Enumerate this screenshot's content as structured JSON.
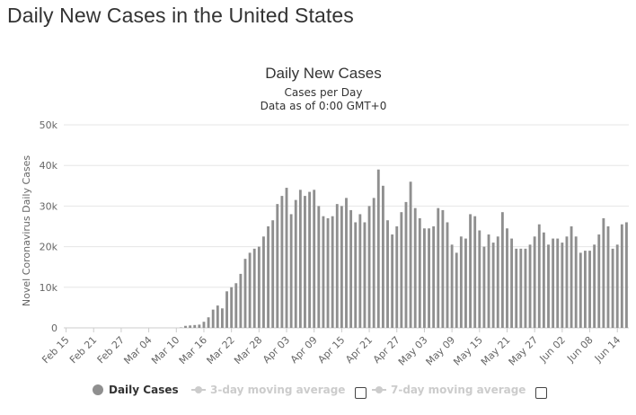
{
  "page": {
    "title": "Daily New Cases in the United States"
  },
  "chart_data": {
    "type": "bar",
    "title": "Daily New Cases",
    "subtitle_line1": "Cases per Day",
    "subtitle_line2": "Data as of 0:00 GMT+0",
    "ylabel": "Novel Coronavirus Daily Cases",
    "xlabel": "",
    "ylim": [
      0,
      50000
    ],
    "y_ticks": [
      "0",
      "10k",
      "20k",
      "30k",
      "40k",
      "50k"
    ],
    "grid": true,
    "legend_position": "bottom",
    "bar_color": "#8f8f8f",
    "x_tick_labels": [
      "Feb 15",
      "Feb 21",
      "Feb 27",
      "Mar 04",
      "Mar 10",
      "Mar 16",
      "Mar 22",
      "Mar 28",
      "Apr 03",
      "Apr 09",
      "Apr 15",
      "Apr 21",
      "Apr 27",
      "May 03",
      "May 09",
      "May 15",
      "May 21",
      "May 27",
      "Jun 02",
      "Jun 08",
      "Jun 14"
    ],
    "series": [
      {
        "name": "Daily Cases",
        "start_date": "Feb 15",
        "values": [
          0,
          0,
          0,
          0,
          0,
          0,
          0,
          0,
          0,
          0,
          0,
          0,
          0,
          0,
          0,
          0,
          0,
          0,
          0,
          0,
          0,
          0,
          0,
          0,
          0,
          100,
          500,
          600,
          700,
          800,
          1500,
          2600,
          4500,
          5500,
          4800,
          9000,
          10000,
          11000,
          13300,
          17000,
          18500,
          19500,
          20000,
          22500,
          25000,
          26500,
          30500,
          32500,
          34500,
          28000,
          31500,
          34000,
          32500,
          33500,
          34000,
          30000,
          27500,
          27000,
          27500,
          30500,
          30000,
          32000,
          29000,
          26000,
          28000,
          26000,
          30000,
          32000,
          39000,
          35000,
          26500,
          23000,
          25000,
          28500,
          31000,
          36000,
          29500,
          27000,
          24500,
          24500,
          25000,
          29500,
          29000,
          26000,
          20500,
          18500,
          22500,
          22000,
          28000,
          27500,
          24000,
          20000,
          23000,
          21000,
          22500,
          28500,
          24500,
          22000,
          19500,
          19500,
          19500,
          20500,
          22500,
          25500,
          23500,
          20500,
          22000,
          22000,
          21000,
          22500,
          25000,
          22500,
          18500,
          19000,
          19000,
          20500,
          23000,
          27000,
          25000,
          19500,
          20500,
          25500,
          26000
        ]
      },
      {
        "name": "3-day moving average"
      },
      {
        "name": "7-day moving average"
      }
    ]
  },
  "colors": {
    "bar": "#8f8f8f",
    "grid": "#e6e6e6",
    "axis_text": "#666666",
    "inactive_legend": "#cccccc"
  }
}
